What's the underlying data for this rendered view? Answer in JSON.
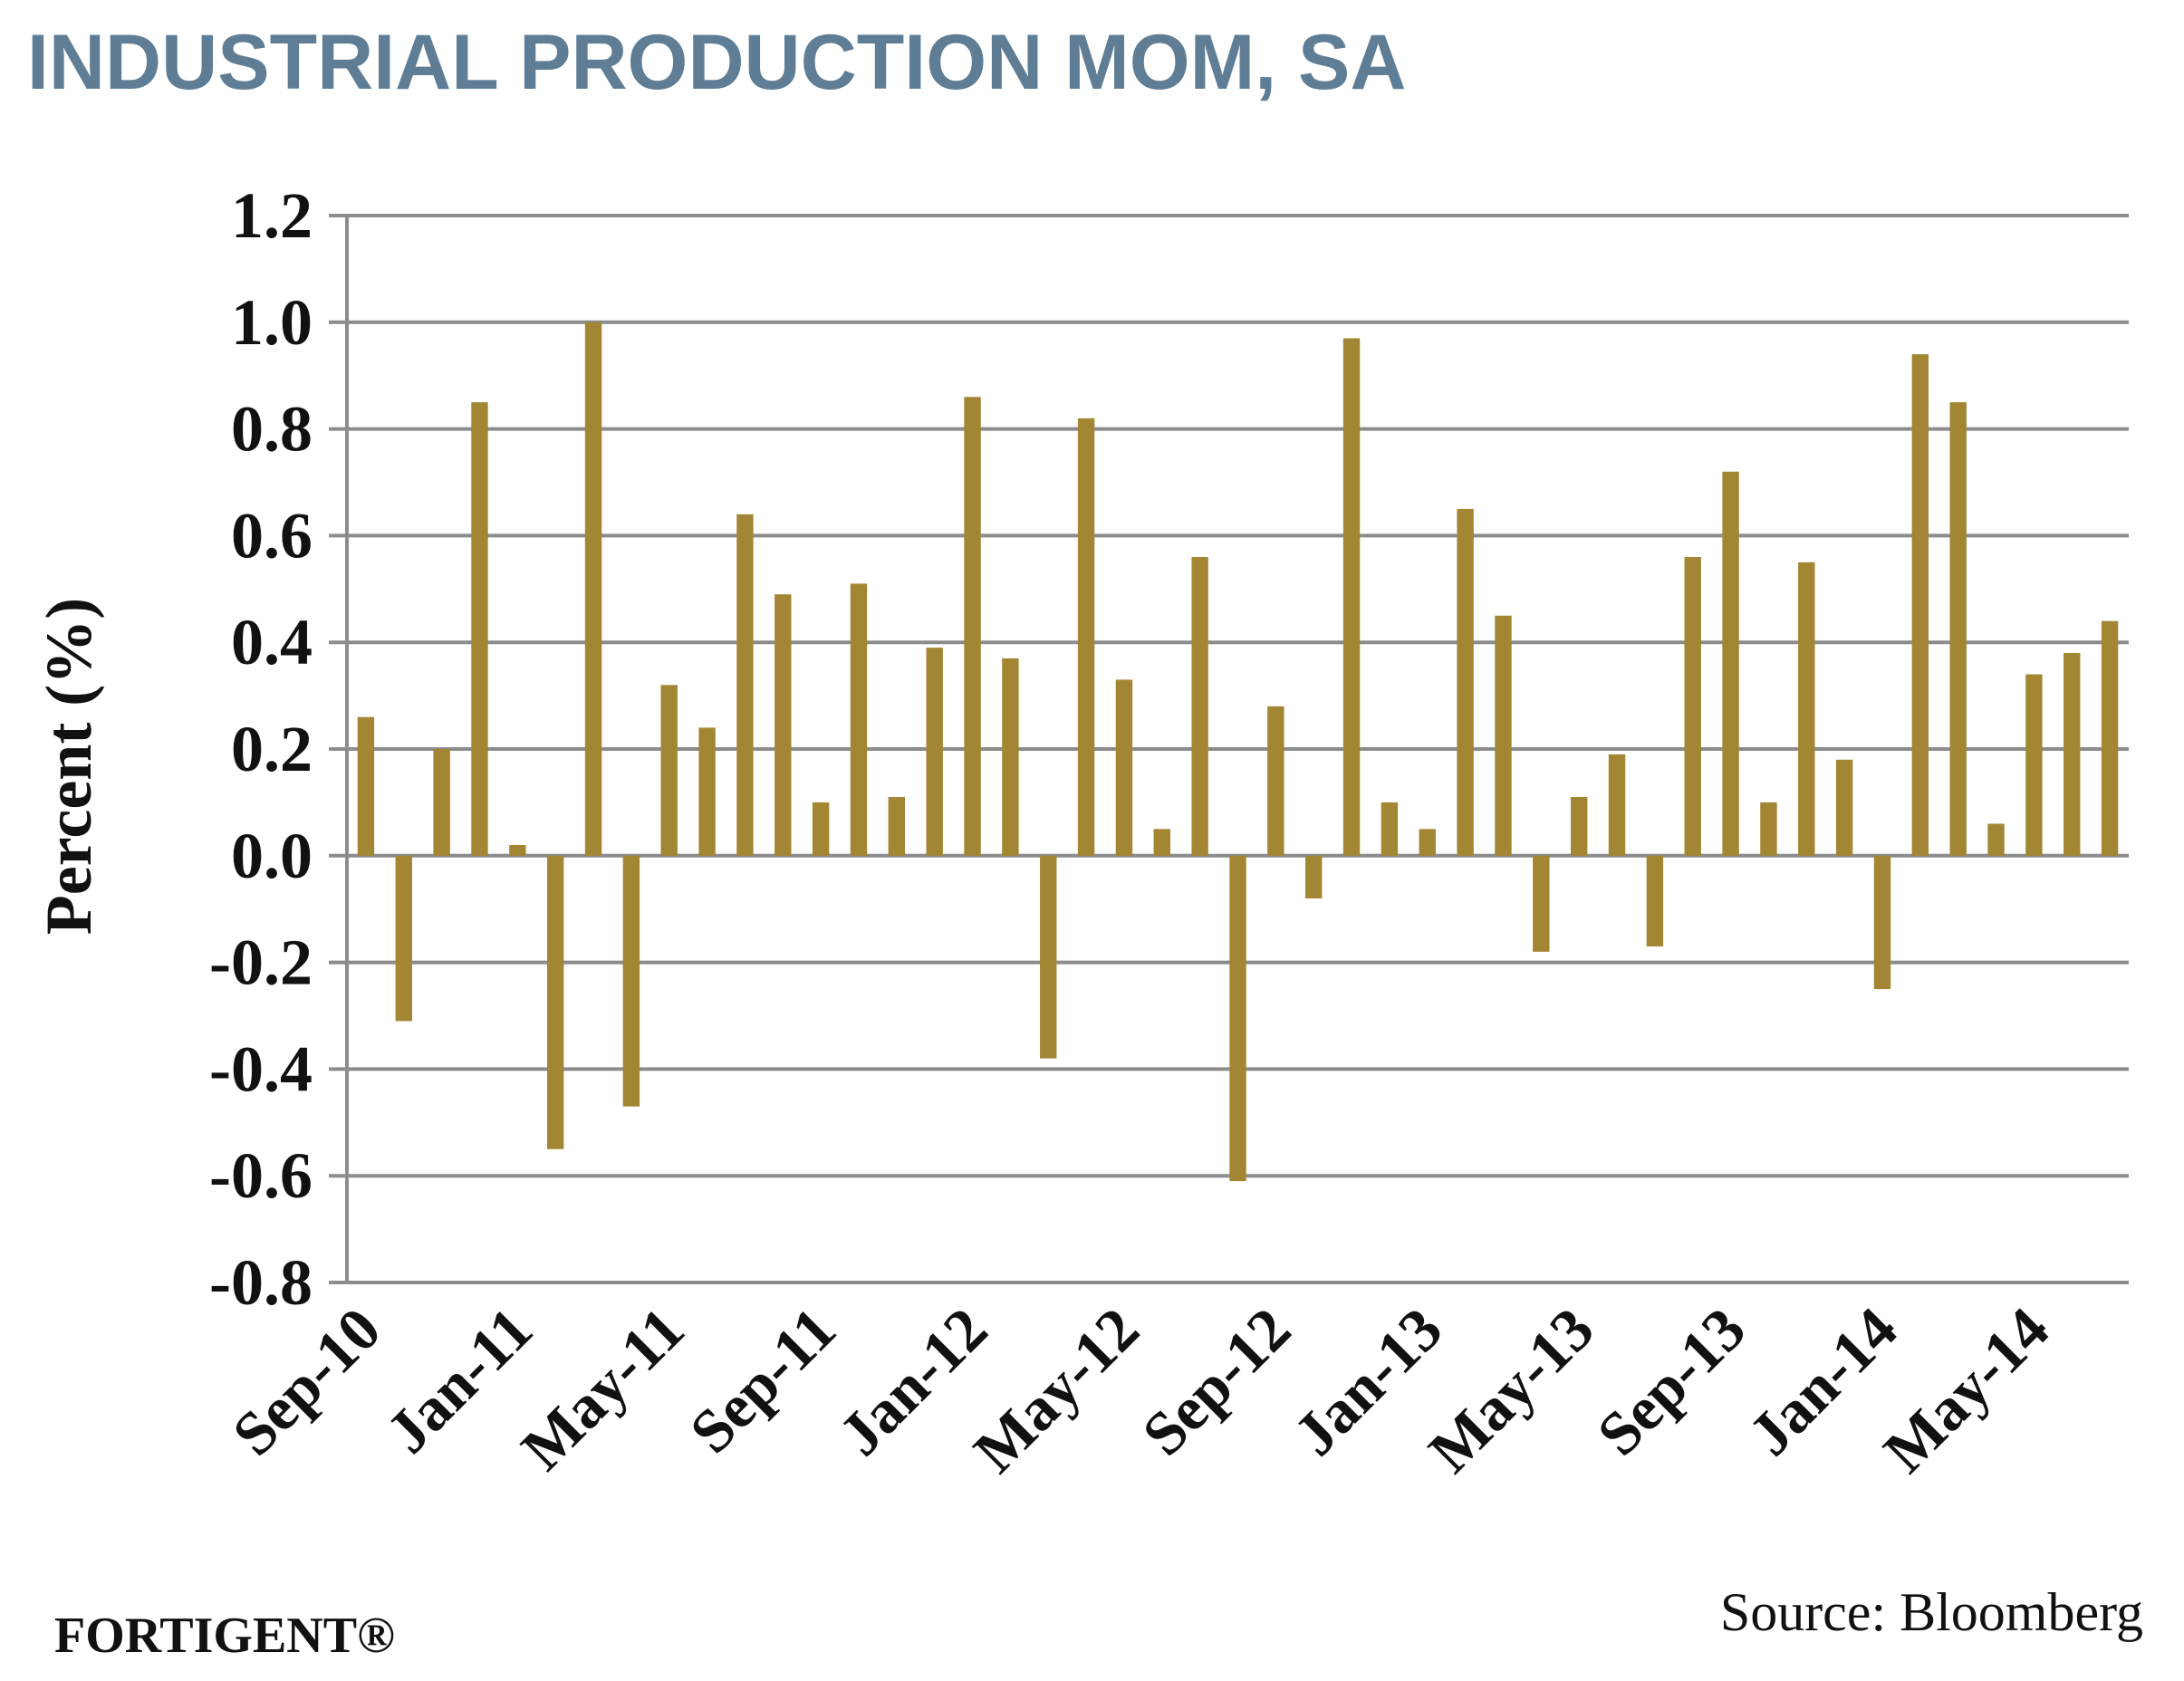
{
  "colors": {
    "title": "#5f7e96",
    "bar": "#a38634",
    "grid": "#8c8c8c",
    "axis_text": "#111111"
  },
  "footer": {
    "brand": "FORTIGENT®",
    "source": "Source: Bloomberg"
  },
  "chart_data": {
    "type": "bar",
    "title": "INDUSTRIAL PRODUCTION MOM, SA",
    "ylabel": "Percent (%)",
    "xlabel": "",
    "ylim": [
      -0.8,
      1.2
    ],
    "yticks": [
      -0.8,
      -0.6,
      -0.4,
      -0.2,
      0.0,
      0.2,
      0.4,
      0.6,
      0.8,
      1.0,
      1.2
    ],
    "grid": true,
    "categories": [
      "Sep-10",
      "Oct-10",
      "Nov-10",
      "Dec-10",
      "Jan-11",
      "Feb-11",
      "Mar-11",
      "Apr-11",
      "May-11",
      "Jun-11",
      "Jul-11",
      "Aug-11",
      "Sep-11",
      "Oct-11",
      "Nov-11",
      "Dec-11",
      "Jan-12",
      "Feb-12",
      "Mar-12",
      "Apr-12",
      "May-12",
      "Jun-12",
      "Jul-12",
      "Aug-12",
      "Sep-12",
      "Oct-12",
      "Nov-12",
      "Dec-12",
      "Jan-13",
      "Feb-13",
      "Mar-13",
      "Apr-13",
      "May-13",
      "Jun-13",
      "Jul-13",
      "Aug-13",
      "Sep-13",
      "Oct-13",
      "Nov-13",
      "Dec-13",
      "Jan-14",
      "Feb-14",
      "Mar-14",
      "Apr-14",
      "May-14",
      "Jun-14",
      "Jul-14"
    ],
    "xtick_labels": [
      "Sep-10",
      "Jan-11",
      "May-11",
      "Sep-11",
      "Jan-12",
      "May-12",
      "Sep-12",
      "Jan-13",
      "May-13",
      "Sep-13",
      "Jan-14",
      "May-14"
    ],
    "values": [
      0.26,
      -0.31,
      0.2,
      0.85,
      0.02,
      -0.55,
      1.0,
      -0.47,
      0.32,
      0.24,
      0.64,
      0.49,
      0.1,
      0.51,
      0.11,
      0.39,
      0.86,
      0.37,
      -0.38,
      0.82,
      0.33,
      0.05,
      0.56,
      -0.61,
      0.28,
      -0.08,
      0.97,
      0.1,
      0.05,
      0.65,
      0.45,
      -0.18,
      0.11,
      0.19,
      -0.17,
      0.56,
      0.72,
      0.1,
      0.55,
      0.18,
      -0.25,
      0.94,
      0.85,
      0.06,
      0.34,
      0.38,
      0.44
    ]
  }
}
